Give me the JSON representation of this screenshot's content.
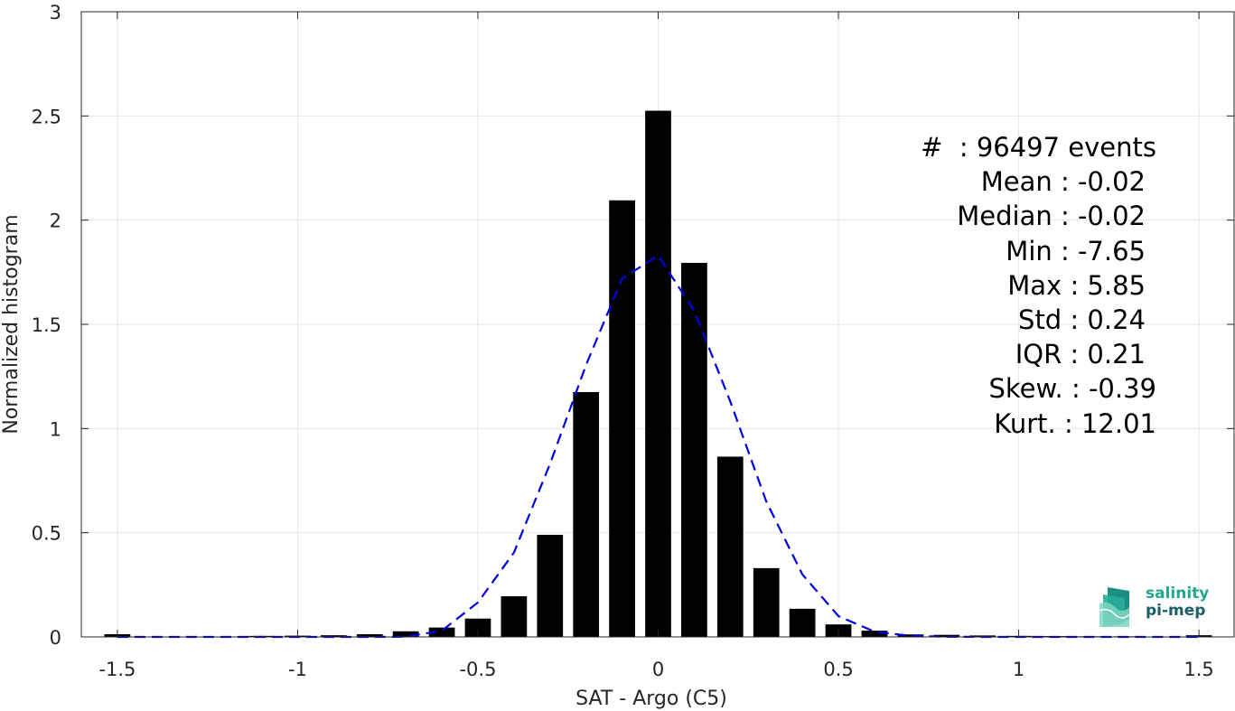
{
  "chart_data": {
    "type": "bar",
    "xlabel": "SAT - Argo (C5)",
    "ylabel": "Normalized histogram",
    "xlim": [
      -1.6,
      1.6
    ],
    "ylim": [
      0,
      3
    ],
    "xticks": [
      -1.5,
      -1,
      -0.5,
      0,
      0.5,
      1,
      1.5
    ],
    "xtick_labels": [
      "-1.5",
      "-1",
      "-0.5",
      "0",
      "0.5",
      "1",
      "1.5"
    ],
    "yticks": [
      0,
      0.5,
      1,
      1.5,
      2,
      2.5,
      3
    ],
    "ytick_labels": [
      "0",
      "0.5",
      "1",
      "1.5",
      "2",
      "2.5",
      "3"
    ],
    "grid": true,
    "bar_color": "#000000",
    "bins": [
      -1.5,
      -1.4,
      -1.3,
      -1.2,
      -1.1,
      -1.0,
      -0.9,
      -0.8,
      -0.7,
      -0.6,
      -0.5,
      -0.4,
      -0.3,
      -0.2,
      -0.1,
      0,
      0.1,
      0.2,
      0.3,
      0.4,
      0.5,
      0.6,
      0.7,
      0.8,
      0.9,
      1.0,
      1.1,
      1.2,
      1.3,
      1.4,
      1.5
    ],
    "values": [
      0.013,
      0.002,
      0.002,
      0.002,
      0.005,
      0.006,
      0.008,
      0.013,
      0.027,
      0.045,
      0.088,
      0.195,
      0.49,
      1.175,
      2.095,
      2.525,
      1.795,
      0.865,
      0.33,
      0.135,
      0.06,
      0.03,
      0.012,
      0.01,
      0.007,
      0.005,
      0.004,
      0.003,
      0.003,
      0.002,
      0.008
    ],
    "fit": {
      "color": "#0000e6",
      "style": "dashed",
      "x": [
        -1.5,
        -1.4,
        -1.3,
        -1.2,
        -1.1,
        -1.0,
        -0.9,
        -0.8,
        -0.7,
        -0.6,
        -0.5,
        -0.4,
        -0.3,
        -0.2,
        -0.1,
        0,
        0.1,
        0.2,
        0.3,
        0.4,
        0.5,
        0.6,
        0.7,
        0.8,
        0.9,
        1.0,
        1.1,
        1.2,
        1.3,
        1.4,
        1.5
      ],
      "y": [
        0,
        0,
        0,
        0,
        0,
        0,
        0,
        0,
        0.001,
        0.03,
        0.165,
        0.405,
        0.83,
        1.305,
        1.72,
        1.83,
        1.565,
        1.13,
        0.65,
        0.3,
        0.1,
        0.025,
        0.005,
        0.001,
        0,
        0,
        0,
        0,
        0,
        0,
        0
      ]
    }
  },
  "stats": {
    "events": "#  : 96497 events",
    "mean": "Mean : -0.02",
    "median": "Median : -0.02",
    "min": "Min : -7.65",
    "max": "Max : 5.85",
    "std": "Std : 0.24",
    "iqr": "IQR : 0.21",
    "skew": "Skew. : -0.39",
    "kurt": "Kurt. : 12.01"
  },
  "logo": {
    "line1": "salinity",
    "line2": "pi-mep"
  }
}
